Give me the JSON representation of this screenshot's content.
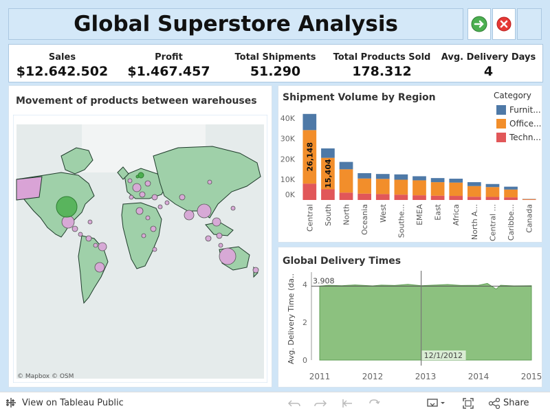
{
  "header": {
    "title": "Global Superstore Analysis",
    "go_icon": "arrow-right-icon",
    "close_icon": "close-icon"
  },
  "kpis": [
    {
      "label": "Sales",
      "value": "$12.642.502"
    },
    {
      "label": "Profit",
      "value": "$1.467.457"
    },
    {
      "label": "Total Shipments",
      "value": "51.290"
    },
    {
      "label": "Total Products Sold",
      "value": "178.312"
    },
    {
      "label": "Avg. Delivery Days",
      "value": "4"
    }
  ],
  "map_panel": {
    "title": "Movement of products between warehouses",
    "attribution": "© Mapbox  © OSM"
  },
  "colors": {
    "furniture": "#4e79a7",
    "office": "#f28e2b",
    "technology": "#e15759",
    "area": "#8cc17f",
    "map_land": "#9fd0a9",
    "map_water": "#e5ebeb",
    "bubble": "#d7a9d6"
  },
  "chart_data": [
    {
      "type": "bar",
      "stacked": true,
      "title": "Shipment Volume by Region",
      "legend_title": "Category",
      "legend_position": "top-right",
      "categories": [
        "Central",
        "South",
        "North",
        "Oceania",
        "West",
        "Southe...",
        "EMEA",
        "East",
        "Africa",
        "North A...",
        "Central ...",
        "Caribbe...",
        "Canada"
      ],
      "series": [
        {
          "name": "Techn...",
          "values": [
            8000,
            5200,
            3600,
            3100,
            2900,
            2600,
            2300,
            2100,
            2000,
            1600,
            1500,
            1300,
            150
          ]
        },
        {
          "name": "Office...",
          "values": [
            26148,
            15404,
            11400,
            7400,
            7400,
            7300,
            7300,
            6600,
            6500,
            5200,
            4800,
            3800,
            300
          ]
        },
        {
          "name": "Furnit...",
          "values": [
            7900,
            4600,
            3600,
            2600,
            2400,
            2600,
            2000,
            2000,
            1900,
            1900,
            1500,
            1400,
            100
          ]
        }
      ],
      "data_labels": [
        {
          "category": "Central",
          "series": "Office...",
          "text": "26,148"
        },
        {
          "category": "South",
          "series": "Office...",
          "text": "15,404"
        }
      ],
      "y_ticks": [
        "0K",
        "10K",
        "20K",
        "30K",
        "40K"
      ],
      "ylim": [
        0,
        45000
      ],
      "xlabel": "",
      "ylabel": "",
      "grid": false
    },
    {
      "type": "area",
      "title": "Global Delivery Times",
      "ylabel": "Avg. Delivery Time (da..",
      "x": [
        "2011-01",
        "2011-03",
        "2011-06",
        "2011-09",
        "2012-01",
        "2012-03",
        "2012-06",
        "2012-09",
        "2012-12",
        "2013-03",
        "2013-06",
        "2013-09",
        "2014-01",
        "2014-03",
        "2014-05",
        "2014-06",
        "2014-09",
        "2015-01"
      ],
      "values": [
        3.908,
        3.95,
        3.93,
        3.97,
        3.92,
        3.96,
        3.94,
        4.0,
        3.93,
        3.96,
        3.99,
        3.94,
        3.95,
        4.05,
        3.75,
        3.95,
        3.92,
        3.93
      ],
      "x_ticks": [
        "2011",
        "2012",
        "2013",
        "2014",
        "2015"
      ],
      "y_ticks": [
        "0",
        "2",
        "4"
      ],
      "ylim": [
        0,
        4.5
      ],
      "reference_label": "3.908",
      "marker_label": "12/1/2012",
      "marker_x": "2012-12"
    }
  ],
  "footer": {
    "view_label": "View on Tableau Public",
    "share_label": "Share"
  }
}
